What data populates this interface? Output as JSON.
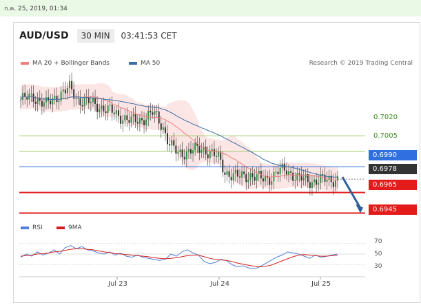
{
  "topbar": {
    "datetime": "ก.ค. 25, 2019, 01:34"
  },
  "header": {
    "symbol": "AUD/USD",
    "timeframe": "30 MIN",
    "clock": "03:41:53 CET"
  },
  "legend": {
    "ma20": "MA 20 + Bollinger Bands",
    "ma50": "MA 50",
    "credit": "Research © 2019 Trading Central"
  },
  "rsi_legend": {
    "rsi": "RSI",
    "ma": "9MA"
  },
  "colors": {
    "ma20": "#f08080",
    "ma50": "#3a6ea5",
    "band": "#fbdede",
    "green_line": "#9ccc65",
    "blue_level": "#2f6fe0",
    "red_level": "#e31b1b",
    "last_price": "#333333",
    "arrow": "#2d5f9a",
    "rsi": "#4f7fd8",
    "rsi_ma": "#d11f1f"
  },
  "chart_data": [
    {
      "type": "candlestick",
      "title": "AUD/USD",
      "timeframe": "30 MIN",
      "x_ticks": [
        "Jul 23",
        "Jul 24",
        "Jul 25"
      ],
      "levels": {
        "resistance_green": [
          0.702,
          0.7005
        ],
        "blue_level": 0.699,
        "last_price": 0.6978,
        "support_red": [
          0.6965,
          0.6945
        ]
      },
      "level_labels": [
        "0.7020",
        "0.7005",
        "0.6990",
        "0.6978",
        "0.6965",
        "0.6945"
      ],
      "ylim": [
        0.6938,
        0.7085
      ],
      "approx_close_path": [
        [
          0,
          0.7055
        ],
        [
          6,
          0.7058
        ],
        [
          12,
          0.705
        ],
        [
          18,
          0.706
        ],
        [
          23,
          0.7066
        ],
        [
          27,
          0.7055
        ],
        [
          33,
          0.7052
        ],
        [
          40,
          0.7046
        ],
        [
          46,
          0.704
        ],
        [
          52,
          0.7034
        ],
        [
          57,
          0.7036
        ],
        [
          62,
          0.7042
        ],
        [
          64,
          0.7038
        ],
        [
          67,
          0.7028
        ],
        [
          70,
          0.7012
        ],
        [
          74,
          0.7002
        ],
        [
          80,
          0.7006
        ],
        [
          86,
          0.7007
        ],
        [
          90,
          0.7003
        ],
        [
          93,
          0.6998
        ],
        [
          96,
          0.6985
        ],
        [
          102,
          0.698
        ],
        [
          108,
          0.6982
        ],
        [
          113,
          0.6978
        ],
        [
          117,
          0.6979
        ],
        [
          121,
          0.6985
        ],
        [
          125,
          0.6987
        ],
        [
          130,
          0.6979
        ],
        [
          136,
          0.6976
        ],
        [
          142,
          0.6977
        ],
        [
          149,
          0.6978
        ]
      ],
      "projection": {
        "from": 0.698,
        "to": 0.6947,
        "direction": "down"
      }
    },
    {
      "type": "line",
      "name": "RSI",
      "y_ticks": [
        70,
        50,
        30
      ],
      "ylim": [
        15,
        85
      ],
      "series": [
        {
          "name": "RSI",
          "values": [
            44,
            50,
            46,
            54,
            48,
            52,
            58,
            50,
            62,
            66,
            60,
            64,
            58,
            56,
            52,
            50,
            54,
            48,
            52,
            46,
            44,
            48,
            44,
            42,
            40,
            38,
            40,
            50,
            46,
            54,
            58,
            52,
            48,
            36,
            32,
            34,
            40,
            38,
            30,
            26,
            28,
            24,
            22,
            26,
            32,
            38,
            44,
            48,
            54,
            52,
            50,
            46,
            42,
            48,
            44,
            46,
            48,
            50
          ]
        },
        {
          "name": "9MA",
          "values": [
            46,
            47,
            48,
            50,
            51,
            52,
            54,
            55,
            57,
            59,
            60,
            60,
            59,
            58,
            56,
            54,
            53,
            51,
            50,
            49,
            48,
            47,
            46,
            45,
            43,
            42,
            41,
            42,
            43,
            45,
            47,
            48,
            48,
            45,
            42,
            40,
            39,
            38,
            36,
            33,
            31,
            29,
            27,
            26,
            27,
            29,
            33,
            37,
            41,
            45,
            48,
            49,
            48,
            47,
            46,
            46,
            47,
            48
          ]
        }
      ]
    }
  ]
}
